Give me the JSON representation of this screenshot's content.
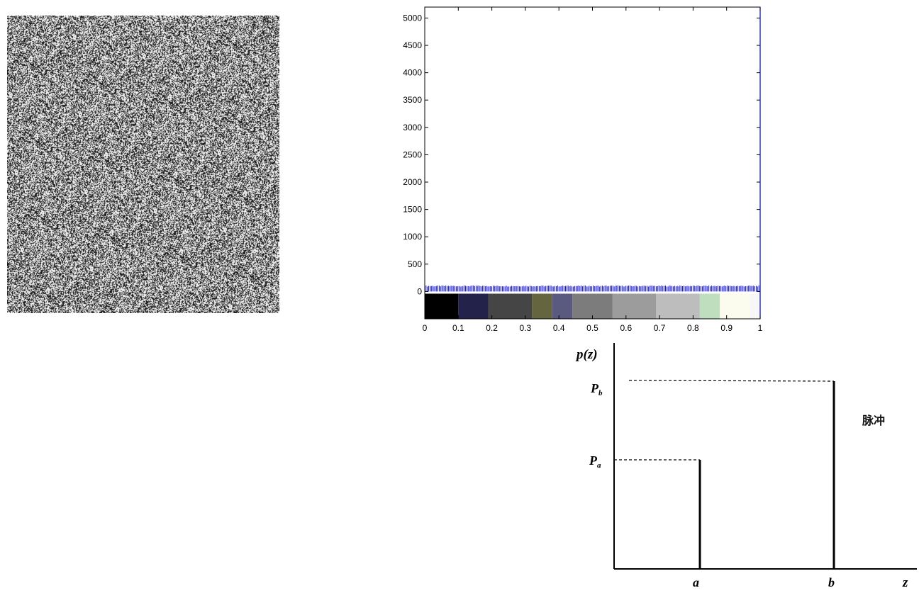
{
  "noise_image": {
    "description_name": "salt-and-pepper noise image",
    "dark_color": "#1a1a1a",
    "light_color": "#f2f2f2",
    "dark_fraction": 0.45
  },
  "chart_data": [
    {
      "type": "bar",
      "title": "",
      "xlabel": "",
      "ylabel": "",
      "xlim": [
        0,
        1
      ],
      "ylim": [
        -500,
        5200
      ],
      "x_ticks": [
        0,
        0.1,
        0.2,
        0.3,
        0.4,
        0.5,
        0.6,
        0.7,
        0.8,
        0.9,
        1
      ],
      "x_tick_labels": [
        "0",
        "0.1",
        "0.2",
        "0.3",
        "0.4",
        "0.5",
        "0.6",
        "0.7",
        "0.8",
        "0.9",
        "1"
      ],
      "y_ticks": [
        0,
        500,
        1000,
        1500,
        2000,
        2500,
        3000,
        3500,
        4000,
        4500,
        5000
      ],
      "y_tick_labels": [
        "0",
        "500",
        "1000",
        "1500",
        "2000",
        "2500",
        "3000",
        "3500",
        "4000",
        "4500",
        "5000"
      ],
      "bins": 256,
      "bin_value_approx": 100,
      "bar_color": "#0000cc",
      "colormap": [
        {
          "from": 0.0,
          "to": 0.1,
          "color": "#000000"
        },
        {
          "from": 0.1,
          "to": 0.19,
          "color": "#22224a"
        },
        {
          "from": 0.19,
          "to": 0.32,
          "color": "#454545"
        },
        {
          "from": 0.32,
          "to": 0.38,
          "color": "#656540"
        },
        {
          "from": 0.38,
          "to": 0.44,
          "color": "#5a5a80"
        },
        {
          "from": 0.44,
          "to": 0.56,
          "color": "#7c7c7c"
        },
        {
          "from": 0.56,
          "to": 0.69,
          "color": "#9c9c9c"
        },
        {
          "from": 0.69,
          "to": 0.82,
          "color": "#bdbdbd"
        },
        {
          "from": 0.82,
          "to": 0.88,
          "color": "#bedebe"
        },
        {
          "from": 0.88,
          "to": 0.97,
          "color": "#fbfbee"
        },
        {
          "from": 0.97,
          "to": 1.0,
          "color": "#f7f7f7"
        }
      ]
    },
    {
      "type": "bar",
      "title": "",
      "xlabel": "z",
      "ylabel": "p(z)",
      "categories": [
        "a",
        "b"
      ],
      "values": [
        0.55,
        1.0
      ],
      "value_labels": [
        "P_a",
        "P_b"
      ],
      "grid": false
    }
  ],
  "pulse_diagram": {
    "ylabel": "p(z)",
    "xlabel": "z",
    "label_a": "a",
    "label_b": "b",
    "label_Pa_main": "P",
    "label_Pa_sub": "a",
    "label_Pb_main": "P",
    "label_Pb_sub": "b",
    "side_label": "脉冲"
  }
}
